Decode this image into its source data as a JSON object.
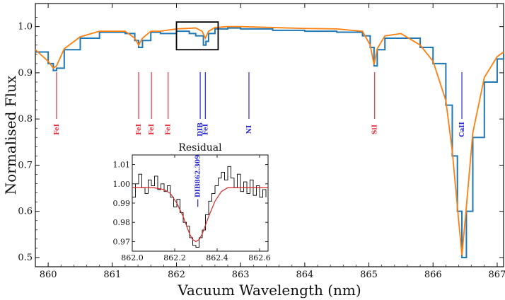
{
  "chart_data": [
    {
      "type": "line",
      "xlabel": "Vacuum Wavelength (nm)",
      "ylabel": "Normalised Flux",
      "xlim": [
        859.8,
        867.1
      ],
      "ylim": [
        0.48,
        1.05
      ],
      "x_ticks": [
        860,
        861,
        862,
        863,
        864,
        865,
        866,
        867
      ],
      "y_ticks": [
        0.5,
        0.6,
        0.7,
        0.8,
        0.9,
        1.0
      ],
      "colors": {
        "observed": "#1f77b4",
        "model": "#ff7f0e",
        "red_lines": "#e8313f",
        "blue_lines": "#2727d8"
      },
      "series": [
        {
          "x": [
            859.8,
            860.0,
            860.08,
            860.13,
            860.25,
            860.5,
            860.8,
            861.2,
            861.35,
            861.41,
            861.47,
            861.6,
            861.75,
            862.0,
            862.2,
            862.3,
            862.42,
            862.46,
            862.5,
            862.6,
            862.8,
            863.0,
            863.5,
            864.0,
            864.5,
            864.9,
            865.02,
            865.08,
            865.13,
            865.25,
            865.5,
            865.8,
            866.0,
            866.2,
            866.3,
            866.38,
            866.45,
            866.52,
            866.62,
            866.8,
            867.0,
            867.1
          ],
          "y": [
            0.945,
            0.92,
            0.905,
            0.91,
            0.95,
            0.975,
            0.988,
            0.985,
            0.97,
            0.955,
            0.97,
            0.988,
            0.985,
            0.99,
            0.985,
            0.98,
            0.96,
            0.968,
            0.985,
            0.995,
            0.997,
            0.995,
            0.992,
            0.99,
            0.988,
            0.98,
            0.955,
            0.915,
            0.95,
            0.975,
            0.975,
            0.955,
            0.92,
            0.83,
            0.72,
            0.6,
            0.5,
            0.6,
            0.76,
            0.88,
            0.93,
            0.94
          ]
        },
        {
          "x": [
            859.8,
            860.0,
            860.08,
            860.13,
            860.25,
            860.5,
            860.8,
            861.2,
            861.35,
            861.41,
            861.47,
            861.6,
            861.75,
            862.0,
            862.3,
            862.4,
            862.45,
            862.5,
            862.6,
            862.8,
            863.0,
            863.5,
            864.0,
            864.5,
            864.9,
            865.02,
            865.08,
            865.13,
            865.25,
            865.5,
            865.8,
            866.0,
            866.2,
            866.3,
            866.38,
            866.45,
            866.52,
            866.62,
            866.8,
            867.0,
            867.1
          ],
          "y": [
            0.95,
            0.925,
            0.91,
            0.915,
            0.952,
            0.978,
            0.99,
            0.99,
            0.975,
            0.96,
            0.975,
            0.99,
            0.99,
            0.995,
            0.997,
            0.99,
            0.975,
            0.99,
            0.998,
            1.0,
            1.0,
            0.998,
            0.996,
            0.995,
            0.99,
            0.96,
            0.918,
            0.952,
            0.98,
            0.985,
            0.96,
            0.925,
            0.84,
            0.73,
            0.61,
            0.505,
            0.61,
            0.77,
            0.89,
            0.935,
            0.945
          ]
        }
      ],
      "line_ids": [
        {
          "label": "FeI",
          "x": 860.13,
          "color": "red"
        },
        {
          "label": "FeI",
          "x": 861.41,
          "color": "red"
        },
        {
          "label": "FeI",
          "x": 861.61,
          "color": "red"
        },
        {
          "label": "FeI",
          "x": 861.87,
          "color": "red"
        },
        {
          "label": "DIB",
          "x": 862.37,
          "color": "blue"
        },
        {
          "label": "FeI",
          "x": 862.45,
          "color": "blue"
        },
        {
          "label": "NI",
          "x": 863.13,
          "color": "blue"
        },
        {
          "label": "SiI",
          "x": 865.09,
          "color": "red"
        },
        {
          "label": "CaII",
          "x": 866.45,
          "color": "blue"
        }
      ],
      "zoom_box": {
        "x": [
          862.0,
          862.65
        ],
        "y": [
          0.95,
          1.01
        ]
      }
    },
    {
      "type": "line",
      "title": "Residual",
      "xlim": [
        862.0,
        862.64
      ],
      "ylim": [
        0.965,
        1.015
      ],
      "x_ticks": [
        862.0,
        862.2,
        862.4,
        862.6
      ],
      "y_ticks": [
        0.97,
        0.98,
        0.99,
        1.0,
        1.01
      ],
      "annotation": {
        "label": "DIB862.309",
        "x": 862.309
      },
      "colors": {
        "residual": "#000000",
        "fit": "#d62728"
      },
      "series": [
        {
          "x": [
            862.0,
            862.015,
            862.03,
            862.045,
            862.06,
            862.075,
            862.09,
            862.105,
            862.12,
            862.135,
            862.15,
            862.165,
            862.18,
            862.195,
            862.21,
            862.225,
            862.24,
            862.255,
            862.27,
            862.285,
            862.3,
            862.315,
            862.33,
            862.345,
            862.36,
            862.375,
            862.39,
            862.405,
            862.42,
            862.435,
            862.45,
            862.465,
            862.48,
            862.495,
            862.51,
            862.525,
            862.54,
            862.555,
            862.57,
            862.585,
            862.6,
            862.615,
            862.63
          ],
          "y": [
            0.993,
            1.0,
            1.005,
            0.998,
            0.995,
            1.002,
            0.999,
            1.004,
            0.997,
            1.0,
            0.996,
            0.999,
            0.993,
            0.988,
            0.992,
            0.985,
            0.98,
            0.978,
            0.972,
            0.968,
            0.967,
            0.972,
            0.976,
            0.984,
            0.991,
            0.995,
            0.999,
            1.003,
            1.006,
            1.002,
            1.009,
            1.003,
            0.998,
            1.005,
            0.996,
            1.001,
            0.995,
            1.002,
            0.994,
            0.999,
            0.993,
            0.997,
            0.993
          ]
        },
        {
          "x": [
            862.0,
            862.1,
            862.15,
            862.18,
            862.21,
            862.24,
            862.27,
            862.285,
            862.3,
            862.315,
            862.33,
            862.36,
            862.39,
            862.42,
            862.45,
            862.5,
            862.64
          ],
          "y": [
            0.998,
            0.998,
            0.997,
            0.995,
            0.99,
            0.983,
            0.974,
            0.971,
            0.97,
            0.971,
            0.974,
            0.983,
            0.991,
            0.996,
            0.998,
            0.998,
            0.998
          ]
        }
      ]
    }
  ]
}
